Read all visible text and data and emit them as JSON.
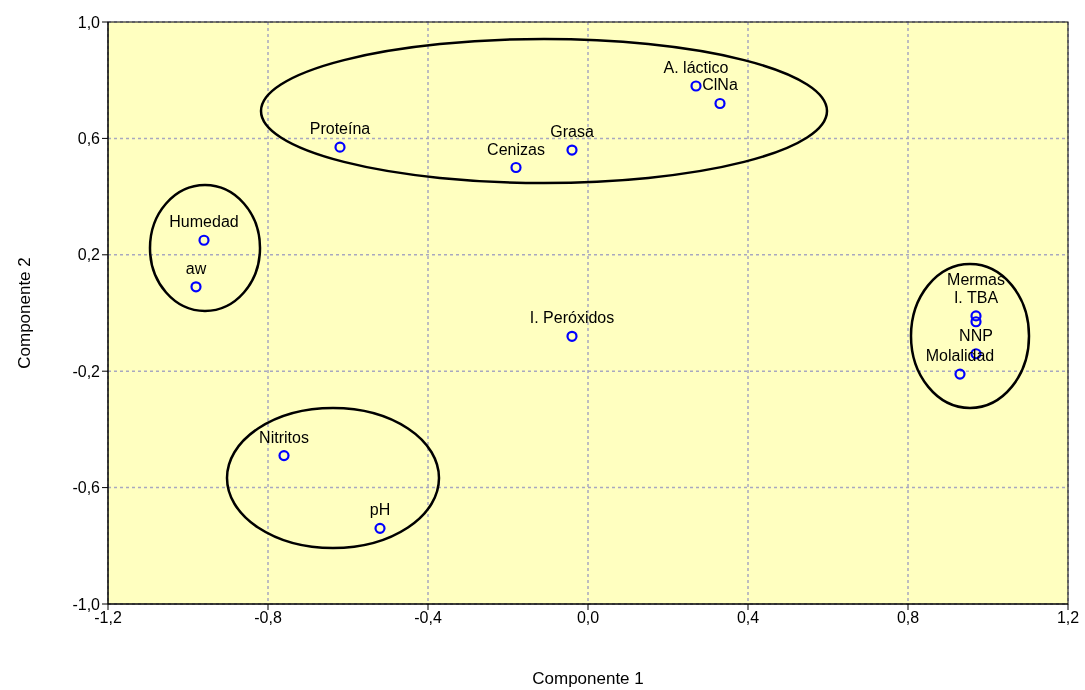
{
  "chart_data": {
    "type": "scatter",
    "xlabel": "Componente 1",
    "ylabel": "Componente 2",
    "xlim": [
      -1.2,
      1.2
    ],
    "ylim": [
      -1.0,
      1.0
    ],
    "xticks": [
      {
        "value": -1.2,
        "label": "-1,2"
      },
      {
        "value": -0.8,
        "label": "-0,8"
      },
      {
        "value": -0.4,
        "label": "-0,4"
      },
      {
        "value": 0,
        "label": "0,0"
      },
      {
        "value": 0.4,
        "label": "0,4"
      },
      {
        "value": 0.8,
        "label": "0,8"
      },
      {
        "value": 1.2,
        "label": "1,2"
      }
    ],
    "yticks": [
      {
        "value": -1.0,
        "label": "-1,0"
      },
      {
        "value": -0.6,
        "label": "-0,6"
      },
      {
        "value": -0.2,
        "label": "-0,2"
      },
      {
        "value": 0.2,
        "label": "0,2"
      },
      {
        "value": 0.6,
        "label": "0,6"
      },
      {
        "value": 1.0,
        "label": "1,0"
      }
    ],
    "grid": true,
    "marker": "circle",
    "legend": false,
    "series": [
      {
        "color": "#0000ff",
        "x": [
          0.27,
          0.33,
          -0.62,
          -0.04,
          -0.18,
          -0.96,
          -0.98,
          -0.04,
          0.97,
          0.97,
          0.97,
          0.93,
          -0.76,
          -0.52
        ],
        "values": [
          0.78,
          0.72,
          0.57,
          0.56,
          0.5,
          0.25,
          0.09,
          -0.08,
          -0.01,
          -0.03,
          -0.14,
          -0.21,
          -0.49,
          -0.74
        ]
      }
    ],
    "annotations": [
      {
        "text": "A. láctico",
        "x": 0.27,
        "y": 0.78
      },
      {
        "text": "ClNa",
        "x": 0.33,
        "y": 0.72
      },
      {
        "text": "Proteína",
        "x": -0.62,
        "y": 0.57
      },
      {
        "text": "Grasa",
        "x": -0.04,
        "y": 0.56
      },
      {
        "text": "Cenizas",
        "x": -0.18,
        "y": 0.5
      },
      {
        "text": "Humedad",
        "x": -0.96,
        "y": 0.25
      },
      {
        "text": "aw",
        "x": -0.98,
        "y": 0.09
      },
      {
        "text": "I. Peróxidos",
        "x": -0.04,
        "y": -0.08
      },
      {
        "text": "I. TBA",
        "x": 0.97,
        "y": -0.01
      },
      {
        "text": "Mermas",
        "x": 0.97,
        "y": -0.03
      },
      {
        "text": "NNP",
        "x": 0.97,
        "y": -0.14
      },
      {
        "text": "Molalidad",
        "x": 0.93,
        "y": -0.21
      },
      {
        "text": "Nitritos",
        "x": -0.76,
        "y": -0.49
      },
      {
        "text": "pH",
        "x": -0.52,
        "y": -0.74
      }
    ]
  }
}
